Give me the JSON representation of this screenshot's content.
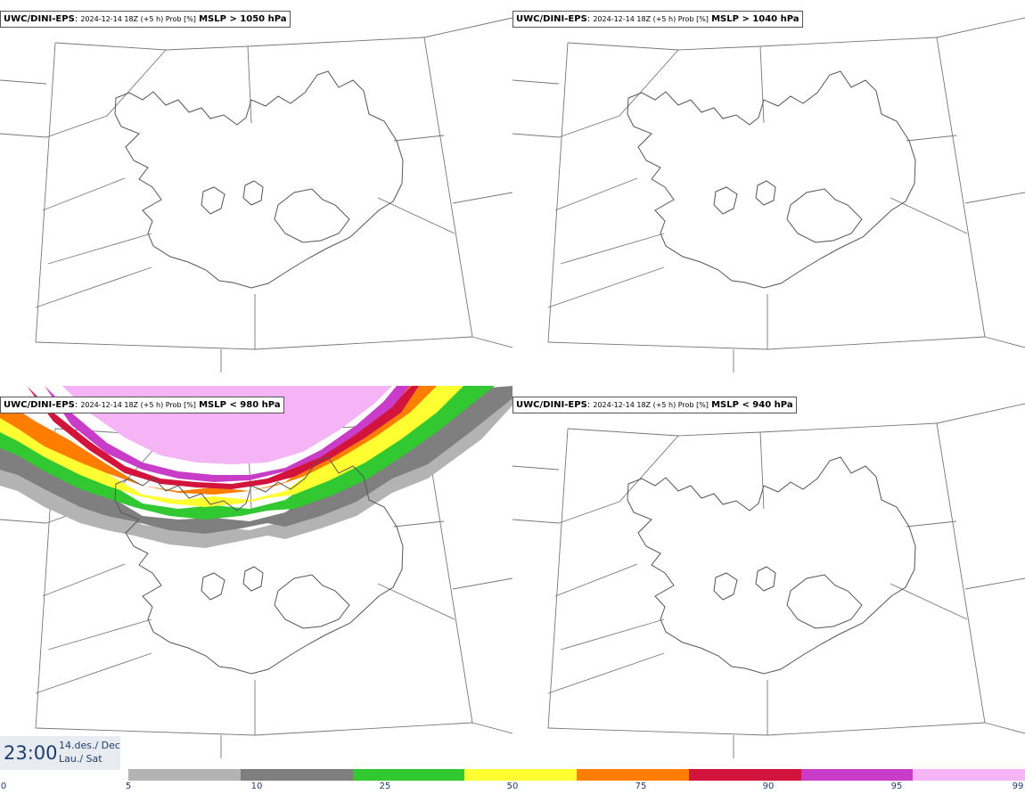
{
  "panels": [
    {
      "source": "UWC/DINI-EPS",
      "meta": "2024-12-14 18Z (+5 h) Prob [%]",
      "field": "MSLP > 1050 hPa"
    },
    {
      "source": "UWC/DINI-EPS",
      "meta": "2024-12-14 18Z (+5 h) Prob [%]",
      "field": "MSLP > 1040 hPa"
    },
    {
      "source": "UWC/DINI-EPS",
      "meta": "2024-12-14 18Z (+5 h) Prob [%]",
      "field": "MSLP < 980 hPa"
    },
    {
      "source": "UWC/DINI-EPS",
      "meta": "2024-12-14 18Z (+5 h) Prob [%]",
      "field": "MSLP < 940 hPa"
    }
  ],
  "time": {
    "clock": "23:00",
    "date_line1": "14.des./ Dec",
    "date_line2": "Lau./ Sat"
  },
  "colorbar": {
    "ticks": [
      "0",
      "5",
      "10",
      "25",
      "50",
      "75",
      "90",
      "95",
      "99"
    ],
    "colors": [
      "#b3b3b3",
      "#7f7f7f",
      "#32c832",
      "#ffff32",
      "#ff7d00",
      "#d2143c",
      "#c83cc8",
      "#f5b4f5"
    ]
  }
}
